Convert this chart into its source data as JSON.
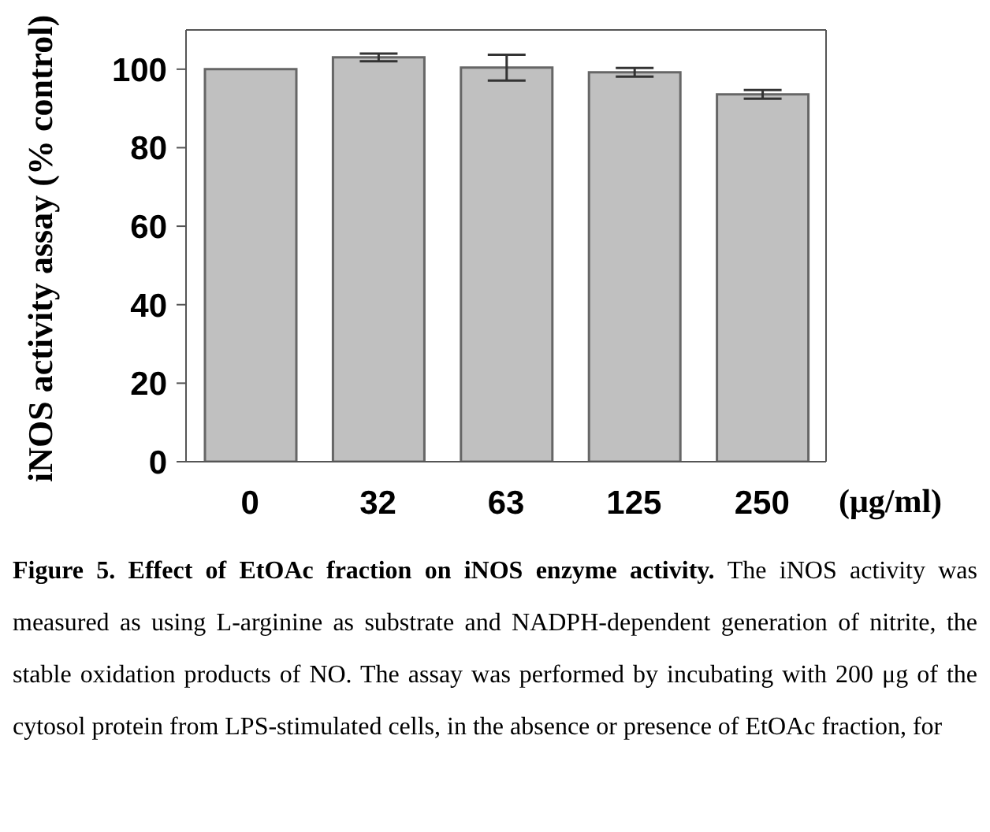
{
  "chart_data": {
    "type": "bar",
    "ylabel": "iNOS activity assay (% control)",
    "xlabel": "(μg/ml)",
    "categories": [
      "0",
      "32",
      "63",
      "125",
      "250"
    ],
    "values": [
      100,
      103,
      100.4,
      99.2,
      93.6
    ],
    "errors": [
      null,
      1,
      3.3,
      1.1,
      1.1
    ],
    "color": "#c0c0c0",
    "ylim": [
      0,
      110
    ],
    "yticks": [
      0,
      20,
      40,
      60,
      80,
      100
    ],
    "annotations": [
      "Figure 5. Effect of EtOAc fraction on iNOS enzyme activity.",
      "The iNOS activity was measured as using L-arginine as substrate and NADPH-dependent generation of nitrite, the stable oxidation products of NO. The assay was performed by incubating with 200 μg of the cytosol protein from LPS-stimulated cells, in the absence or presence of EtOAc fraction, for"
    ]
  }
}
